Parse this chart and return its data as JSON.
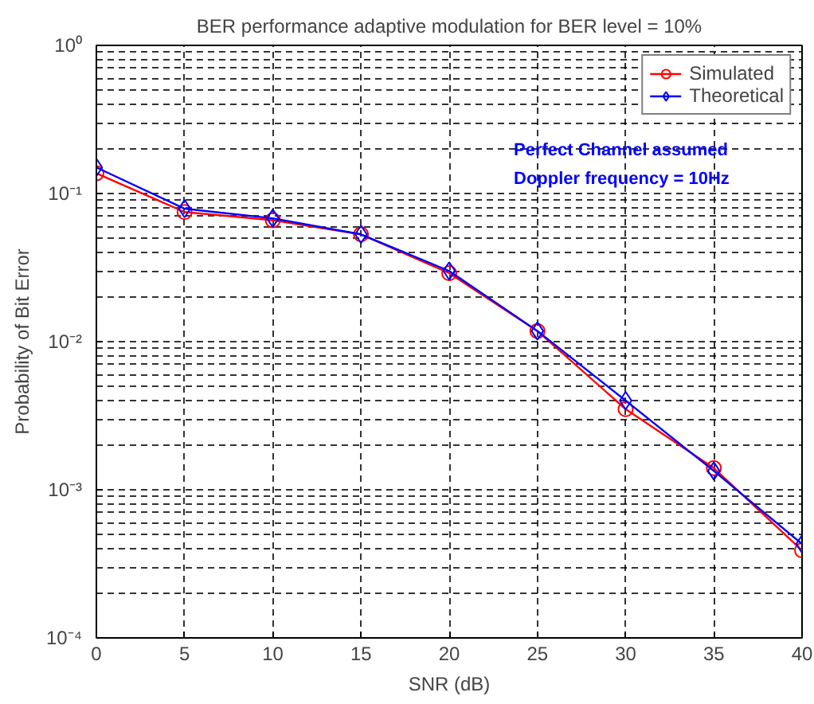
{
  "chart_data": {
    "type": "line",
    "title": "BER performance adaptive modulation for BER level = 10%",
    "xlabel": "SNR (dB)",
    "ylabel": "Probability of Bit Error",
    "x": [
      0,
      5,
      10,
      15,
      20,
      25,
      30,
      35,
      40
    ],
    "series": [
      {
        "name": "Simulated",
        "color": "#ff0000",
        "marker": "circle",
        "values": [
          0.137,
          0.075,
          0.066,
          0.053,
          0.029,
          0.0118,
          0.0035,
          0.0014,
          0.00039
        ]
      },
      {
        "name": "Theoretical",
        "color": "#0000ff",
        "marker": "diamond",
        "values": [
          0.15,
          0.079,
          0.068,
          0.053,
          0.03,
          0.0118,
          0.004,
          0.00134,
          0.00043
        ]
      }
    ],
    "annotations": [
      "Perfect Channel assumed",
      "Doppler frequency = 10Hz"
    ],
    "xlim": [
      0,
      40
    ],
    "xticks": [
      0,
      5,
      10,
      15,
      20,
      25,
      30,
      35,
      40
    ],
    "ylim": [
      0.0001,
      1
    ],
    "yticks": [
      {
        "value": 0.0001,
        "label": "10⁻⁴"
      },
      {
        "value": 0.001,
        "label": "10⁻³"
      },
      {
        "value": 0.01,
        "label": "10⁻²"
      },
      {
        "value": 0.1,
        "label": "10⁻¹"
      },
      {
        "value": 1,
        "label": "10⁰"
      }
    ],
    "log": "y",
    "grid": true,
    "legend": "top right",
    "line_style": "solid"
  }
}
